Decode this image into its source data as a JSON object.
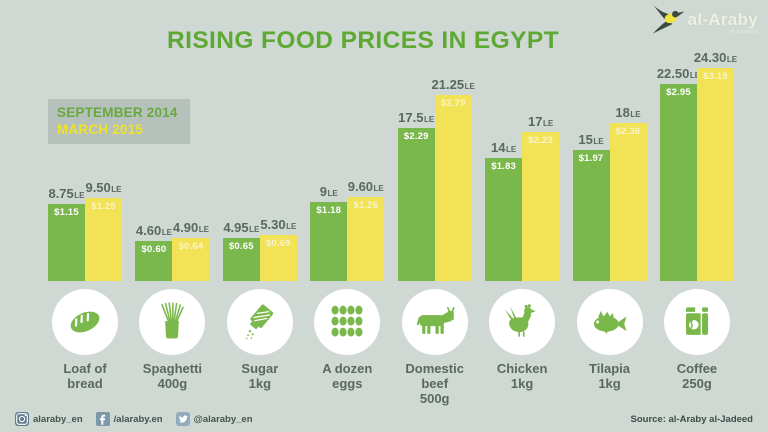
{
  "title": "RISING FOOD PRICES IN EGYPT",
  "logo": {
    "brand": "al-Araby",
    "sub": "al-Jadeed"
  },
  "legend": {
    "september": "SEPTEMBER 2014",
    "march": "MARCH 2015"
  },
  "units": {
    "currency": "LE"
  },
  "colors": {
    "background": "#cfd8d3",
    "bar_green": "#7bb84c",
    "bar_yellow": "#f2e256",
    "title_green": "#5ea834",
    "label_gray_green": "#59695e",
    "legend_bg": "#b6c1bb",
    "legend_yellow": "#eee329",
    "footer_icon_blue": "#6e8b9d"
  },
  "products": [
    {
      "label": "Loaf of bread",
      "qty": "",
      "icon": "bread-icon",
      "sep": {
        "le": "8.75",
        "usd": "$1.15"
      },
      "mar": {
        "le": "9.50",
        "usd": "$1.25"
      }
    },
    {
      "label": "Spaghetti",
      "qty": "400g",
      "icon": "spaghetti-icon",
      "sep": {
        "le": "4.60",
        "usd": "$0.60"
      },
      "mar": {
        "le": "4.90",
        "usd": "$0.64"
      }
    },
    {
      "label": "Sugar",
      "qty": "1kg",
      "icon": "sugar-icon",
      "sep": {
        "le": "4.95",
        "usd": "$0.65"
      },
      "mar": {
        "le": "5.30",
        "usd": "$0.69"
      }
    },
    {
      "label": "A dozen eggs",
      "qty": "",
      "icon": "eggs-icon",
      "sep": {
        "le": "9",
        "usd": "$1.18"
      },
      "mar": {
        "le": "9.60",
        "usd": "$1.26"
      }
    },
    {
      "label": "Domestic beef",
      "qty": "500g",
      "icon": "cow-icon",
      "sep": {
        "le": "17.5",
        "usd": "$2.29"
      },
      "mar": {
        "le": "21.25",
        "usd": "$2.79"
      }
    },
    {
      "label": "Chicken",
      "qty": "1kg",
      "icon": "chicken-icon",
      "sep": {
        "le": "14",
        "usd": "$1.83"
      },
      "mar": {
        "le": "17",
        "usd": "$2.23"
      }
    },
    {
      "label": "Tilapia",
      "qty": "1kg",
      "icon": "fish-icon",
      "sep": {
        "le": "15",
        "usd": "$1.97"
      },
      "mar": {
        "le": "18",
        "usd": "$2.36"
      }
    },
    {
      "label": "Coffee",
      "qty": "250g",
      "icon": "coffee-icon",
      "sep": {
        "le": "22.50",
        "usd": "$2.95"
      },
      "mar": {
        "le": "24.30",
        "usd": "$3.19"
      }
    }
  ],
  "chart_data": {
    "type": "bar",
    "title": "RISING FOOD PRICES IN EGYPT",
    "categories": [
      "Loaf of bread",
      "Spaghetti 400g",
      "Sugar 1kg",
      "A dozen eggs",
      "Domestic beef 500g",
      "Chicken 1kg",
      "Tilapia 1kg",
      "Coffee 250g"
    ],
    "series": [
      {
        "name": "SEPTEMBER 2014",
        "unit": "LE",
        "color": "#7bb84c",
        "values": [
          8.75,
          4.6,
          4.95,
          9,
          17.5,
          14,
          15,
          22.5
        ],
        "values_usd": [
          1.15,
          0.6,
          0.65,
          1.18,
          2.29,
          1.83,
          1.97,
          2.95
        ]
      },
      {
        "name": "MARCH 2015",
        "unit": "LE",
        "color": "#f2e256",
        "values": [
          9.5,
          4.9,
          5.3,
          9.6,
          21.25,
          17,
          18,
          24.3
        ],
        "values_usd": [
          1.25,
          0.64,
          0.69,
          1.26,
          2.79,
          2.23,
          2.36,
          3.19
        ]
      }
    ],
    "ylim": [
      0,
      24.3
    ],
    "grid": false,
    "legend_position": "top-left"
  },
  "footer": {
    "social": [
      {
        "icon": "instagram-icon",
        "handle": "alaraby_en"
      },
      {
        "icon": "facebook-icon",
        "handle": "/alaraby.en"
      },
      {
        "icon": "twitter-icon",
        "handle": "@alaraby_en"
      }
    ],
    "source": "Source: al-Araby al-Jadeed"
  }
}
